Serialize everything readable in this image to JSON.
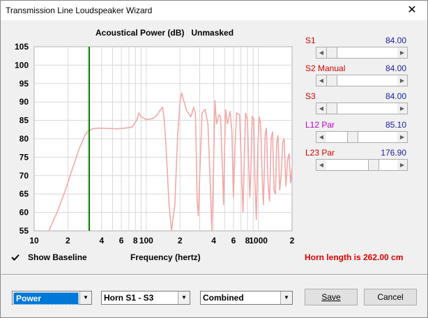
{
  "window": {
    "title": "Transmission Line Loudspeaker Wizard",
    "close_glyph": "✕"
  },
  "chart_heading": "Acoustical Power (dB)   Unmasked",
  "chart_data": {
    "type": "line",
    "title": "Acoustical Power (dB)   Unmasked",
    "xlabel": "Frequency (hertz)",
    "ylabel": "",
    "xscale": "log",
    "xlim": [
      10,
      2000
    ],
    "ylim": [
      55,
      105
    ],
    "y_ticks": [
      "105",
      "100",
      "95",
      "90",
      "85",
      "80",
      "75",
      "70",
      "65",
      "60",
      "55"
    ],
    "x_ticks": [
      {
        "value": 10,
        "label": "10"
      },
      {
        "value": 20,
        "label": "2"
      },
      {
        "value": 40,
        "label": "4"
      },
      {
        "value": 60,
        "label": "6"
      },
      {
        "value": 80,
        "label": "8"
      },
      {
        "value": 100,
        "label": "100"
      },
      {
        "value": 200,
        "label": "2"
      },
      {
        "value": 400,
        "label": "4"
      },
      {
        "value": 600,
        "label": "6"
      },
      {
        "value": 800,
        "label": "8"
      },
      {
        "value": 1000,
        "label": "1000"
      },
      {
        "value": 2000,
        "label": "2"
      }
    ],
    "grid": true,
    "marker": {
      "x": 31,
      "color": "#008000"
    },
    "series": [
      {
        "color": "#f4a8a8",
        "points": [
          [
            13.5,
            55
          ],
          [
            16,
            60
          ],
          [
            19,
            66
          ],
          [
            22,
            72
          ],
          [
            25,
            77
          ],
          [
            28,
            80.5
          ],
          [
            30,
            82
          ],
          [
            33,
            82.7
          ],
          [
            38,
            82.9
          ],
          [
            45,
            82.8
          ],
          [
            55,
            82.7
          ],
          [
            65,
            82.9
          ],
          [
            75,
            83.2
          ],
          [
            82,
            85
          ],
          [
            86,
            87
          ],
          [
            90,
            86
          ],
          [
            100,
            85.2
          ],
          [
            115,
            85.5
          ],
          [
            125,
            86.5
          ],
          [
            135,
            88
          ],
          [
            140,
            88.5
          ],
          [
            145,
            85
          ],
          [
            150,
            78
          ],
          [
            160,
            62
          ],
          [
            168,
            55
          ],
          [
            180,
            62
          ],
          [
            190,
            80
          ],
          [
            200,
            90
          ],
          [
            207,
            92.5
          ],
          [
            215,
            90.5
          ],
          [
            230,
            87.5
          ],
          [
            250,
            86
          ],
          [
            265,
            88.5
          ],
          [
            275,
            87
          ],
          [
            285,
            63
          ],
          [
            292,
            59
          ],
          [
            300,
            70
          ],
          [
            315,
            87
          ],
          [
            335,
            88
          ],
          [
            355,
            84
          ],
          [
            370,
            70
          ],
          [
            385,
            55
          ],
          [
            398,
            72
          ],
          [
            410,
            90.5
          ],
          [
            425,
            84
          ],
          [
            445,
            86.5
          ],
          [
            460,
            86
          ],
          [
            480,
            71
          ],
          [
            490,
            62
          ],
          [
            500,
            77
          ],
          [
            510,
            88
          ],
          [
            530,
            84
          ],
          [
            560,
            87.5
          ],
          [
            580,
            82
          ],
          [
            600,
            64
          ],
          [
            620,
            78
          ],
          [
            640,
            87
          ],
          [
            680,
            86.5
          ],
          [
            710,
            70
          ],
          [
            730,
            60
          ],
          [
            750,
            75
          ],
          [
            770,
            87
          ],
          [
            800,
            85
          ],
          [
            820,
            74
          ],
          [
            840,
            64
          ],
          [
            860,
            72
          ],
          [
            880,
            86
          ],
          [
            910,
            85.5
          ],
          [
            930,
            70
          ],
          [
            960,
            58
          ],
          [
            990,
            78
          ],
          [
            1020,
            86
          ],
          [
            1050,
            84
          ],
          [
            1080,
            70
          ],
          [
            1110,
            62
          ],
          [
            1150,
            81
          ],
          [
            1180,
            83
          ],
          [
            1220,
            68
          ],
          [
            1260,
            63
          ],
          [
            1300,
            80
          ],
          [
            1340,
            82
          ],
          [
            1380,
            66
          ],
          [
            1420,
            65
          ],
          [
            1460,
            79
          ],
          [
            1500,
            81
          ],
          [
            1550,
            66
          ],
          [
            1600,
            70
          ],
          [
            1650,
            79
          ],
          [
            1700,
            80
          ],
          [
            1760,
            67
          ],
          [
            1820,
            74
          ],
          [
            1880,
            76
          ],
          [
            1940,
            68
          ],
          [
            2000,
            72
          ]
        ]
      }
    ]
  },
  "show_baseline": {
    "label": "Show Baseline",
    "checked": true
  },
  "frequency_label": "Frequency (hertz)",
  "horn_length": "Horn length is 262.00 cm",
  "sliders": [
    {
      "label": "S1",
      "value": "84.00",
      "label_color": "#d00000",
      "position": 0.0
    },
    {
      "label": "S2  Manual",
      "value": "84.00",
      "label_color": "#d00000",
      "position": 0.0
    },
    {
      "label": "S3",
      "value": "84.00",
      "label_color": "#d00000",
      "position": 0.0
    },
    {
      "label": "L12  Par",
      "value": "85.10",
      "label_color": "#c000c0",
      "position": 0.35
    },
    {
      "label": "L23  Par",
      "value": "176.90",
      "label_color": "#d00000",
      "position": 0.7
    }
  ],
  "combos": [
    {
      "value": "Power",
      "selected": true
    },
    {
      "value": "Horn S1 - S3",
      "selected": false
    },
    {
      "value": "Combined",
      "selected": false
    }
  ],
  "buttons": {
    "save": "Save",
    "cancel": "Cancel"
  }
}
